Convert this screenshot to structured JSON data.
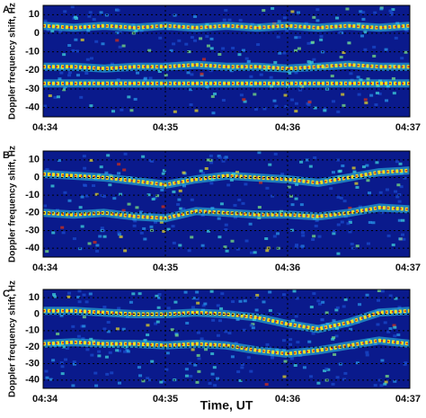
{
  "chart_data": [
    {
      "type": "spectrogram",
      "label": "A",
      "ylabel": "Doppler frequency shift, Hz",
      "ylim": [
        -45,
        15
      ],
      "yticks": [
        10,
        0,
        -10,
        -20,
        -30,
        -40
      ],
      "xlim": [
        274,
        277
      ],
      "xticks": [
        {
          "value": 274,
          "label": "04:34"
        },
        {
          "value": 275,
          "label": "04:35"
        },
        {
          "value": 276,
          "label": "04:36"
        },
        {
          "value": 277,
          "label": "04:37"
        }
      ],
      "grid": true,
      "x": [
        274,
        274.25,
        274.5,
        274.75,
        275,
        275.25,
        275.5,
        275.75,
        276,
        276.25,
        276.5,
        276.75,
        277
      ],
      "series": [
        {
          "color": "#f0e020",
          "values": [
            4,
            3,
            4,
            3,
            4,
            3,
            4,
            3,
            4,
            3,
            4,
            3,
            4
          ]
        },
        {
          "color": "#f0e020",
          "values": [
            -18,
            -18,
            -19,
            -18,
            -18,
            -17,
            -18,
            -18,
            -19,
            -18,
            -17,
            -18,
            -18
          ]
        },
        {
          "color": "#f0e020",
          "values": [
            -27,
            -27,
            -27,
            -27,
            -27,
            -27,
            -27,
            -27,
            -27,
            -27,
            -27,
            -27,
            -27
          ]
        }
      ]
    },
    {
      "type": "spectrogram",
      "label": "B",
      "ylabel": "Doppler frequency shift, Hz",
      "ylim": [
        -45,
        15
      ],
      "yticks": [
        10,
        0,
        -10,
        -20,
        -30,
        -40
      ],
      "xlim": [
        274,
        277
      ],
      "xticks": [
        {
          "value": 274,
          "label": "04:34"
        },
        {
          "value": 275,
          "label": "04:35"
        },
        {
          "value": 276,
          "label": "04:36"
        },
        {
          "value": 277,
          "label": "04:37"
        }
      ],
      "grid": true,
      "x": [
        274,
        274.25,
        274.5,
        274.75,
        275,
        275.25,
        275.5,
        275.75,
        276,
        276.25,
        276.5,
        276.75,
        277
      ],
      "series": [
        {
          "color": "#f0e020",
          "values": [
            2,
            1,
            0,
            -2,
            -4,
            -1,
            1,
            0,
            -1,
            -3,
            0,
            3,
            4
          ]
        },
        {
          "color": "#f0e020",
          "values": [
            -20,
            -21,
            -20,
            -22,
            -23,
            -19,
            -20,
            -21,
            -21,
            -22,
            -20,
            -17,
            -18
          ]
        }
      ]
    },
    {
      "type": "spectrogram",
      "label": "C",
      "ylabel": "Doppler frequency shift, Hz",
      "xlabel": "Time, UT",
      "ylim": [
        -45,
        15
      ],
      "yticks": [
        10,
        0,
        -10,
        -20,
        -30,
        -40
      ],
      "xlim": [
        274,
        277
      ],
      "xticks": [
        {
          "value": 274,
          "label": "04:34"
        },
        {
          "value": 275,
          "label": "04:35"
        },
        {
          "value": 276,
          "label": "04:36"
        },
        {
          "value": 277,
          "label": "04:37"
        }
      ],
      "grid": true,
      "x": [
        274,
        274.25,
        274.5,
        274.75,
        275,
        275.25,
        275.5,
        275.75,
        276,
        276.25,
        276.5,
        276.75,
        277
      ],
      "series": [
        {
          "color": "#f0e020",
          "values": [
            2,
            2,
            1,
            0,
            0,
            1,
            0,
            -2,
            -6,
            -9,
            -5,
            1,
            2
          ]
        },
        {
          "color": "#f0e020",
          "values": [
            -18,
            -17,
            -18,
            -18,
            -19,
            -18,
            -19,
            -22,
            -24,
            -22,
            -19,
            -16,
            -18
          ]
        }
      ]
    }
  ]
}
